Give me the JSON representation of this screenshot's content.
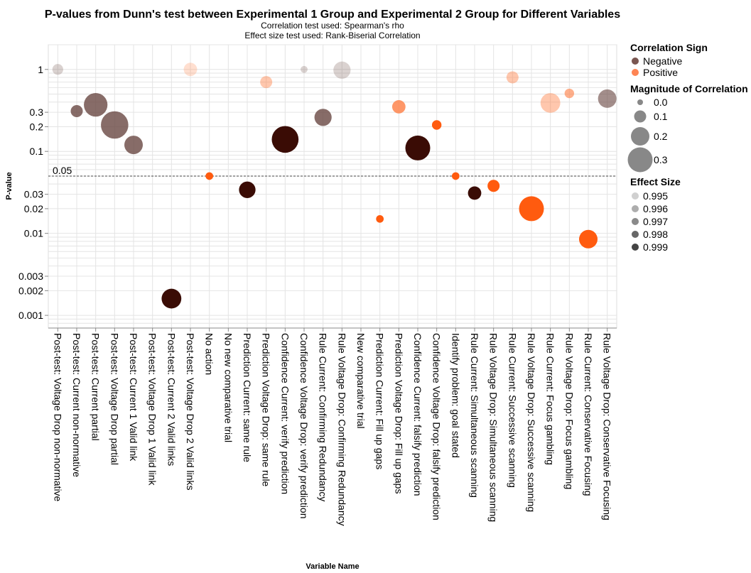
{
  "chart_data": {
    "type": "scatter",
    "title": "P-values from Dunn's test between Experimental 1 Group and Experimental 2 Group for Different Variables",
    "subtitle_lines": [
      "Correlation test used: Spearman's rho",
      "Effect size test used: Rank-Biserial Correlation"
    ],
    "xlabel": "Variable Name",
    "ylabel": "P-value",
    "yscale": "log",
    "ylim": [
      0.0007,
      2
    ],
    "yticks": [
      {
        "value": 1,
        "label": "1"
      },
      {
        "value": 0.3,
        "label": "0.3"
      },
      {
        "value": 0.2,
        "label": "0.2"
      },
      {
        "value": 0.1,
        "label": "0.1"
      },
      {
        "value": 0.03,
        "label": "0.03"
      },
      {
        "value": 0.02,
        "label": "0.02"
      },
      {
        "value": 0.01,
        "label": "0.01"
      },
      {
        "value": 0.003,
        "label": "0.003"
      },
      {
        "value": 0.002,
        "label": "0.002"
      },
      {
        "value": 0.001,
        "label": "0.001"
      }
    ],
    "reference_line": {
      "value": 0.05,
      "label": "0.05"
    },
    "categories": [
      "Post-test: Voltage Drop non-normative",
      "Post-test: Current non-normative",
      "Post-test: Current partial",
      "Post-test: Voltage Drop partial",
      "Post-test: Current 1 Valid link",
      "Post-test: Voltage Drop 1 Valid link",
      "Post-test: Current 2 Valid links",
      "Post-test: Voltage Drop 2 Valid links",
      "No action",
      "No new comparative trial",
      "Prediction Current: same rule",
      "Prediction Voltage Drop: same rule",
      "Confidence Current: verify prediction",
      "Confidence Voltage Drop: verify prediction",
      "Rule Current: Confirming Redundancy",
      "Rule Voltage Drop: Confirming Redundancy",
      "New comparative trial",
      "Prediction Current: Fill up gaps",
      "Prediction Voltage Drop: Fill up gaps",
      "Confidence Current: falsify prediction",
      "Confidence Voltage Drop: falsify prediction",
      "Identify problem: goal stated",
      "Rule Current: Simultaneous scanning",
      "Rule Voltage Drop: Simultaneous scanning",
      "Rule Current: Successive scanning",
      "Rule Voltage Drop: Successive scanning",
      "Rule Current: Focus gambling",
      "Rule Voltage Drop: Focus gambling",
      "Rule Current: Conservative Focusing",
      "Rule Voltage Drop: Conservative Focusing"
    ],
    "points": [
      {
        "category": "Post-test: Voltage Drop non-normative",
        "p_value": 1.0,
        "sign": "Negative",
        "magnitude": 0.08,
        "effect_size": 0.995
      },
      {
        "category": "Post-test: Current non-normative",
        "p_value": 0.31,
        "sign": "Negative",
        "magnitude": 0.1,
        "effect_size": 0.998
      },
      {
        "category": "Post-test: Current partial",
        "p_value": 0.37,
        "sign": "Negative",
        "magnitude": 0.28,
        "effect_size": 0.998
      },
      {
        "category": "Post-test: Voltage Drop partial",
        "p_value": 0.21,
        "sign": "Negative",
        "magnitude": 0.34,
        "effect_size": 0.998
      },
      {
        "category": "Post-test: Current 1 Valid link",
        "p_value": 0.12,
        "sign": "Negative",
        "magnitude": 0.2,
        "effect_size": 0.998
      },
      {
        "category": "Post-test: Current 2 Valid links",
        "p_value": 0.0016,
        "sign": "Negative",
        "magnitude": 0.22,
        "effect_size": 0.999
      },
      {
        "category": "Post-test: Voltage Drop 2 Valid links",
        "p_value": 1.0,
        "sign": "Positive",
        "magnitude": 0.12,
        "effect_size": 0.995
      },
      {
        "category": "No action",
        "p_value": 0.05,
        "sign": "Positive",
        "magnitude": 0.03,
        "effect_size": 0.999
      },
      {
        "category": "Prediction Current: same rule",
        "p_value": 0.034,
        "sign": "Negative",
        "magnitude": 0.17,
        "effect_size": 0.999
      },
      {
        "category": "Prediction Voltage Drop: same rule",
        "p_value": 0.7,
        "sign": "Positive",
        "magnitude": 0.1,
        "effect_size": 0.996
      },
      {
        "category": "Confidence Current: verify prediction",
        "p_value": 0.14,
        "sign": "Negative",
        "magnitude": 0.33,
        "effect_size": 0.999
      },
      {
        "category": "Confidence Voltage Drop: verify prediction",
        "p_value": 1.0,
        "sign": "Negative",
        "magnitude": 0.02,
        "effect_size": 0.995
      },
      {
        "category": "Rule Current: Confirming Redundancy",
        "p_value": 0.26,
        "sign": "Negative",
        "magnitude": 0.18,
        "effect_size": 0.998
      },
      {
        "category": "Rule Voltage Drop: Confirming Redundancy",
        "p_value": 0.98,
        "sign": "Negative",
        "magnitude": 0.18,
        "effect_size": 0.995
      },
      {
        "category": "Prediction Current: Fill up gaps",
        "p_value": 0.015,
        "sign": "Positive",
        "magnitude": 0.03,
        "effect_size": 0.999
      },
      {
        "category": "Prediction Voltage Drop: Fill up gaps",
        "p_value": 0.35,
        "sign": "Positive",
        "magnitude": 0.12,
        "effect_size": 0.998
      },
      {
        "category": "Confidence Current: falsify prediction",
        "p_value": 0.11,
        "sign": "Negative",
        "magnitude": 0.3,
        "effect_size": 0.999
      },
      {
        "category": "Confidence Voltage Drop: falsify prediction",
        "p_value": 0.21,
        "sign": "Positive",
        "magnitude": 0.06,
        "effect_size": 0.999
      },
      {
        "category": "Identify problem: goal stated",
        "p_value": 0.05,
        "sign": "Positive",
        "magnitude": 0.03,
        "effect_size": 0.999
      },
      {
        "category": "Rule Current: Simultaneous scanning",
        "p_value": 0.031,
        "sign": "Negative",
        "magnitude": 0.12,
        "effect_size": 0.999
      },
      {
        "category": "Rule Voltage Drop: Simultaneous scanning",
        "p_value": 0.038,
        "sign": "Positive",
        "magnitude": 0.1,
        "effect_size": 0.999
      },
      {
        "category": "Rule Current: Successive scanning",
        "p_value": 0.8,
        "sign": "Positive",
        "magnitude": 0.1,
        "effect_size": 0.996
      },
      {
        "category": "Rule Voltage Drop: Successive scanning",
        "p_value": 0.02,
        "sign": "Positive",
        "magnitude": 0.3,
        "effect_size": 0.999
      },
      {
        "category": "Rule Current: Focus gambling",
        "p_value": 0.39,
        "sign": "Positive",
        "magnitude": 0.22,
        "effect_size": 0.996
      },
      {
        "category": "Rule Voltage Drop: Focus gambling",
        "p_value": 0.51,
        "sign": "Positive",
        "magnitude": 0.06,
        "effect_size": 0.997
      },
      {
        "category": "Rule Current: Conservative Focusing",
        "p_value": 0.0085,
        "sign": "Positive",
        "magnitude": 0.2,
        "effect_size": 0.999
      },
      {
        "category": "Rule Voltage Drop: Conservative Focusing",
        "p_value": 0.44,
        "sign": "Negative",
        "magnitude": 0.2,
        "effect_size": 0.997
      }
    ],
    "colors": {
      "Negative": "#6b4a45",
      "Positive": "#fe7f45",
      "strong_negative": "#3a0c05",
      "strong_positive": "#ff5b0f"
    },
    "legend": {
      "placement": "right",
      "sign": {
        "title": "Correlation Sign",
        "entries": [
          {
            "label": "Negative",
            "color": "#7a5651"
          },
          {
            "label": "Positive",
            "color": "#fe8554"
          }
        ]
      },
      "magnitude": {
        "title": "Magnitude of Correlation",
        "entries": [
          {
            "label": "0.0",
            "value": 0.0
          },
          {
            "label": "0.1",
            "value": 0.1
          },
          {
            "label": "0.2",
            "value": 0.2
          },
          {
            "label": "0.3",
            "value": 0.3
          }
        ]
      },
      "effect_size": {
        "title": "Effect Size",
        "entries": [
          {
            "label": "0.995",
            "value": 0.995
          },
          {
            "label": "0.996",
            "value": 0.996
          },
          {
            "label": "0.997",
            "value": 0.997
          },
          {
            "label": "0.998",
            "value": 0.998
          },
          {
            "label": "0.999",
            "value": 0.999
          }
        ]
      }
    },
    "grid": true
  }
}
